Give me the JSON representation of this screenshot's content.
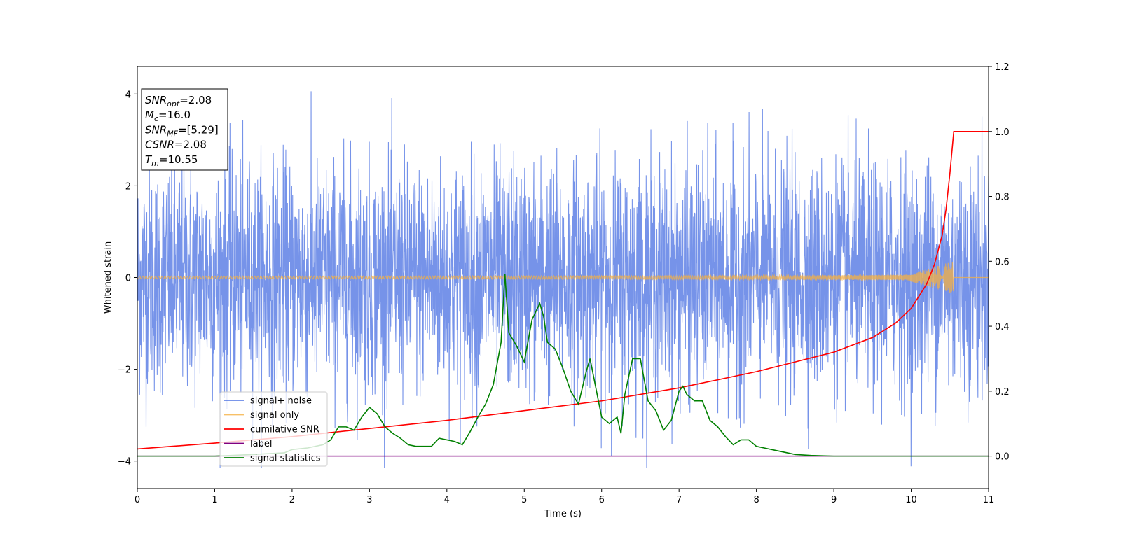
{
  "chart_data": {
    "type": "line",
    "xlabel": "Time (s)",
    "ylabel": "Whitened strain",
    "xlim": [
      0,
      11
    ],
    "ylim_left": [
      -4.6,
      4.6
    ],
    "ylim_right": [
      -0.1,
      1.2
    ],
    "x_ticks": [
      0,
      1,
      2,
      3,
      4,
      5,
      6,
      7,
      8,
      9,
      10,
      11
    ],
    "y_ticks_left": [
      -4,
      -2,
      0,
      2,
      4
    ],
    "y_ticks_right": [
      0.0,
      0.2,
      0.4,
      0.6,
      0.8,
      1.0,
      1.2
    ],
    "legend_position": "lower-left",
    "series": [
      {
        "name": "signal+ noise",
        "axis": "left",
        "color": "#4169e1",
        "description": "gaussian noise, typical amplitude about ±2, peaks up to about 4.2 and down to about -4.1",
        "amplitude_typical": 2.0,
        "max": 4.15,
        "min": -4.15
      },
      {
        "name": "signal only",
        "axis": "left",
        "color": "#f5b041",
        "chirp_start": 0,
        "chirp_end": 10.55,
        "chirp_peak_amplitude": 0.35
      },
      {
        "name": "cumilative SNR",
        "axis": "right",
        "color": "#ff0000",
        "x": [
          0,
          1,
          2,
          3,
          4,
          5,
          6,
          7,
          8,
          8.5,
          9,
          9.5,
          9.8,
          10.0,
          10.2,
          10.3,
          10.4,
          10.45,
          10.5,
          10.55,
          11
        ],
        "y": [
          0.022,
          0.04,
          0.06,
          0.085,
          0.11,
          0.14,
          0.17,
          0.21,
          0.26,
          0.29,
          0.32,
          0.365,
          0.41,
          0.455,
          0.53,
          0.59,
          0.68,
          0.76,
          0.87,
          1.0,
          1.0
        ]
      },
      {
        "name": "label",
        "axis": "right",
        "color": "#800080",
        "x": [
          0,
          11
        ],
        "y": [
          0,
          0
        ]
      },
      {
        "name": "signal statistics",
        "axis": "right",
        "color": "#008000",
        "x": [
          0,
          1,
          1.5,
          1.9,
          2.0,
          2.2,
          2.4,
          2.5,
          2.6,
          2.7,
          2.8,
          2.9,
          3.0,
          3.1,
          3.2,
          3.3,
          3.4,
          3.5,
          3.6,
          3.8,
          3.9,
          4.0,
          4.1,
          4.2,
          4.3,
          4.4,
          4.5,
          4.6,
          4.7,
          4.75,
          4.8,
          4.9,
          5.0,
          5.1,
          5.2,
          5.25,
          5.3,
          5.4,
          5.5,
          5.6,
          5.7,
          5.8,
          5.85,
          5.9,
          6.0,
          6.1,
          6.2,
          6.25,
          6.3,
          6.4,
          6.5,
          6.6,
          6.7,
          6.8,
          6.9,
          7.0,
          7.05,
          7.1,
          7.2,
          7.3,
          7.4,
          7.5,
          7.6,
          7.7,
          7.8,
          7.9,
          8.0,
          8.1,
          8.3,
          8.5,
          8.7,
          9.0,
          11
        ],
        "y": [
          0.0,
          0.0,
          0.005,
          0.01,
          0.02,
          0.025,
          0.035,
          0.05,
          0.09,
          0.09,
          0.08,
          0.12,
          0.15,
          0.13,
          0.09,
          0.07,
          0.055,
          0.035,
          0.03,
          0.03,
          0.055,
          0.05,
          0.045,
          0.035,
          0.075,
          0.12,
          0.16,
          0.22,
          0.35,
          0.56,
          0.38,
          0.34,
          0.29,
          0.42,
          0.47,
          0.43,
          0.35,
          0.33,
          0.27,
          0.2,
          0.16,
          0.26,
          0.3,
          0.24,
          0.12,
          0.1,
          0.12,
          0.07,
          0.19,
          0.3,
          0.3,
          0.17,
          0.14,
          0.08,
          0.11,
          0.2,
          0.215,
          0.19,
          0.17,
          0.17,
          0.11,
          0.09,
          0.06,
          0.035,
          0.05,
          0.05,
          0.03,
          0.025,
          0.015,
          0.005,
          0.002,
          0.0,
          0.0
        ]
      }
    ],
    "info_box": {
      "lines": [
        {
          "base": "SNR",
          "sub": "opt",
          "value": "=2.08"
        },
        {
          "base": "M",
          "sub": "c",
          "value": "=16.0"
        },
        {
          "base": "SNR",
          "sub": "MF",
          "value": "=[5.29]"
        },
        {
          "base": "CSNR",
          "sub": "",
          "value": "=2.08"
        },
        {
          "base": "T",
          "sub": "m",
          "value": "=10.55"
        }
      ]
    }
  }
}
